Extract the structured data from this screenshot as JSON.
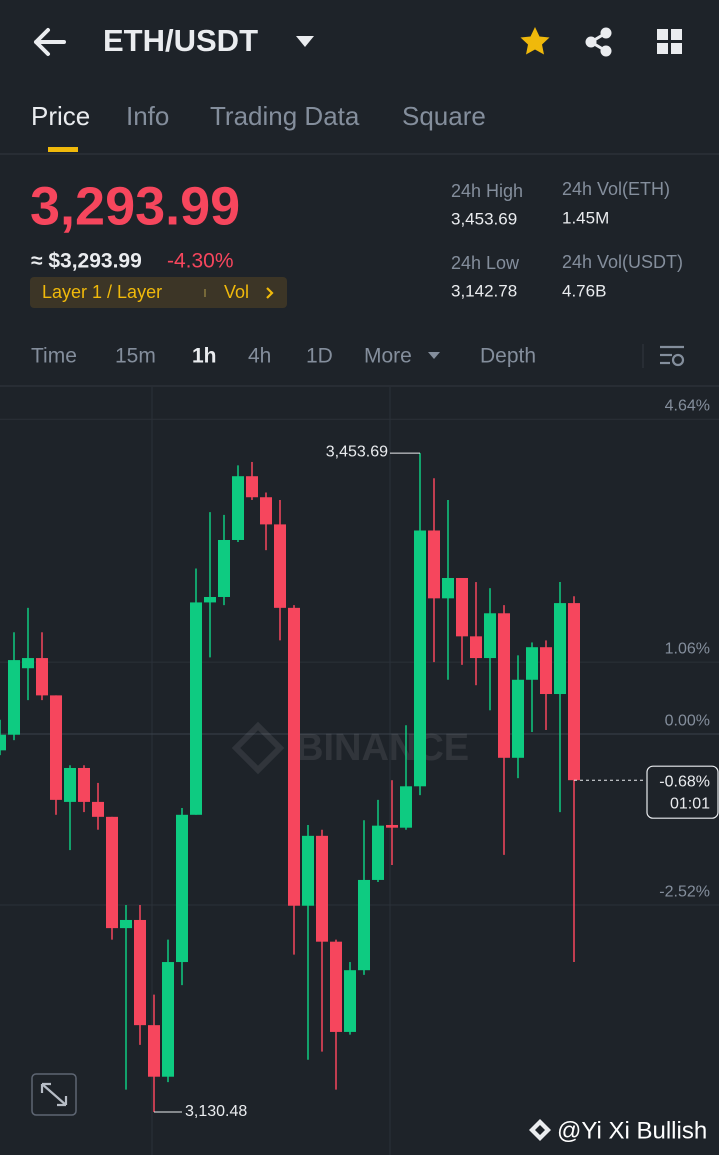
{
  "header": {
    "pair": "ETH/USDT"
  },
  "tabs": [
    "Price",
    "Info",
    "Trading Data",
    "Square"
  ],
  "price": {
    "last": "3,293.99",
    "usd": "≈ $3,293.99",
    "change": "-4.30%",
    "tag": "Layer 1 / Layer",
    "tag_vol": "Vol"
  },
  "stats": [
    {
      "label": "24h High",
      "value": "3,453.69"
    },
    {
      "label": "24h Vol(ETH)",
      "value": "1.45M"
    },
    {
      "label": "24h Low",
      "value": "3,142.78"
    },
    {
      "label": "24h Vol(USDT)",
      "value": "4.76B"
    }
  ],
  "intervals": [
    "Time",
    "15m",
    "1h",
    "4h",
    "1D",
    "More",
    "Depth"
  ],
  "chart_data": {
    "type": "candlestick",
    "watermark": "BINANCE",
    "ylim": [
      -6.13,
      5.1
    ],
    "yticks": [
      {
        "value": 4.64,
        "label": "4.64%"
      },
      {
        "value": 1.06,
        "label": "1.06%"
      },
      {
        "value": 0.0,
        "label": "0.00%"
      },
      {
        "value": -2.52,
        "label": "-2.52%"
      }
    ],
    "up_color": "#0ecb81",
    "down_color": "#f6465d",
    "open": [
      -0.24,
      -0.01,
      0.97,
      1.12,
      0.57,
      -1.0,
      -0.5,
      -1.0,
      -1.22,
      -2.86,
      -2.74,
      -4.29,
      -5.05,
      -3.36,
      -1.19,
      1.94,
      2.02,
      2.86,
      3.8,
      3.49,
      3.09,
      1.86,
      -2.53,
      -1.5,
      -3.06,
      -4.39,
      -3.48,
      -2.15,
      -1.34,
      -1.38,
      -0.77,
      3.0,
      2.0,
      2.3,
      1.44,
      1.12,
      1.78,
      -0.35,
      0.8,
      1.28,
      0.59,
      1.93
    ],
    "high": [
      0.21,
      1.5,
      1.86,
      1.5,
      0.57,
      -0.46,
      -0.46,
      -0.72,
      -1.22,
      -2.52,
      -2.52,
      -3.84,
      -3.03,
      -1.09,
      2.44,
      3.27,
      3.23,
      3.96,
      4.01,
      3.56,
      3.45,
      1.9,
      -1.34,
      -1.41,
      -3.03,
      -3.36,
      -1.27,
      -0.97,
      -0.68,
      0.13,
      4.14,
      3.77,
      3.45,
      2.3,
      2.24,
      2.15,
      1.9,
      1.16,
      1.35,
      1.38,
      2.24,
      2.03
    ],
    "low": [
      -0.31,
      -0.09,
      0.5,
      0.5,
      -1.19,
      -1.71,
      -1.15,
      -1.41,
      -3.03,
      -5.24,
      -4.58,
      -5.57,
      -5.13,
      -3.7,
      -1.19,
      1.13,
      1.9,
      2.83,
      3.45,
      2.71,
      1.38,
      -3.25,
      -4.8,
      -4.68,
      -5.24,
      -4.43,
      -3.55,
      -2.18,
      -1.93,
      -1.41,
      -0.9,
      1.06,
      0.8,
      1.02,
      0.72,
      0.35,
      -1.78,
      -0.65,
      0.03,
      0.06,
      -1.15,
      -3.36
    ],
    "close": [
      -0.01,
      1.09,
      1.12,
      0.57,
      -0.97,
      -0.5,
      -1.0,
      -1.22,
      -2.86,
      -2.74,
      -4.29,
      -5.05,
      -3.36,
      -1.19,
      1.94,
      2.02,
      2.86,
      3.8,
      3.49,
      3.09,
      1.86,
      -2.53,
      -1.5,
      -3.06,
      -4.39,
      -3.48,
      -2.15,
      -1.35,
      -1.38,
      -0.77,
      3.0,
      2.0,
      2.3,
      1.44,
      1.12,
      1.78,
      -0.35,
      0.8,
      1.28,
      0.59,
      1.93,
      -0.68
    ],
    "high_label": "3,453.69",
    "low_label": "3,130.48",
    "last_label": "-0.68%",
    "countdown": "01:01"
  },
  "footer": {
    "watermark": "@Yi Xi Bullish"
  }
}
